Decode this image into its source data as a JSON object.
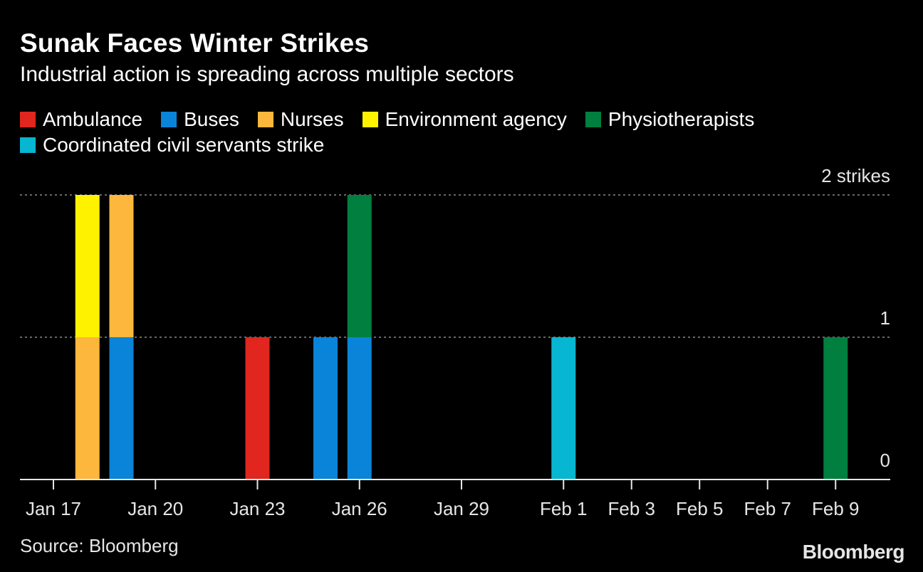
{
  "header": {
    "title": "Sunak Faces Winter Strikes",
    "subtitle": "Industrial action is spreading across multiple sectors"
  },
  "footer": {
    "source": "Source: Bloomberg",
    "brand": "Bloomberg"
  },
  "colors": {
    "background": "#000000",
    "Ambulance": "#e0261e",
    "Buses": "#0a84d8",
    "Nurses": "#fdb73c",
    "Environment agency": "#fff200",
    "Physiotherapists": "#007f3f",
    "Coordinated civil servants strike": "#07b6d1"
  },
  "chart_data": {
    "type": "bar",
    "stacked": true,
    "title": "Sunak Faces Winter Strikes",
    "subtitle": "Industrial action is spreading across multiple sectors",
    "ylabel": "strikes",
    "ylim": [
      0,
      2
    ],
    "y_ticks": [
      {
        "value": 0,
        "label": "0"
      },
      {
        "value": 1,
        "label": "1"
      },
      {
        "value": 2,
        "label": "2 strikes"
      }
    ],
    "grid": true,
    "legend_placement": "top",
    "x_ticks": [
      "Jan 17",
      "Jan 20",
      "Jan 23",
      "Jan 26",
      "Jan 29",
      "Feb 1",
      "Feb 3",
      "Feb 5",
      "Feb 7",
      "Feb 9"
    ],
    "series": [
      {
        "name": "Ambulance",
        "points": [
          {
            "date": "Jan 23",
            "value": 1
          }
        ]
      },
      {
        "name": "Buses",
        "points": [
          {
            "date": "Jan 19",
            "value": 1
          },
          {
            "date": "Jan 25",
            "value": 1
          },
          {
            "date": "Jan 26",
            "value": 1
          }
        ]
      },
      {
        "name": "Nurses",
        "points": [
          {
            "date": "Jan 18",
            "value": 1
          },
          {
            "date": "Jan 19",
            "value": 1
          }
        ]
      },
      {
        "name": "Environment agency",
        "points": [
          {
            "date": "Jan 18",
            "value": 1
          }
        ]
      },
      {
        "name": "Physiotherapists",
        "points": [
          {
            "date": "Jan 26",
            "value": 1
          },
          {
            "date": "Feb 9",
            "value": 1
          }
        ]
      },
      {
        "name": "Coordinated civil servants strike",
        "points": [
          {
            "date": "Feb 1",
            "value": 1
          }
        ]
      }
    ],
    "stacks": [
      {
        "date": "Jan 18",
        "segments": [
          "Nurses",
          "Environment agency"
        ]
      },
      {
        "date": "Jan 19",
        "segments": [
          "Buses",
          "Nurses"
        ]
      },
      {
        "date": "Jan 23",
        "segments": [
          "Ambulance"
        ]
      },
      {
        "date": "Jan 25",
        "segments": [
          "Buses"
        ]
      },
      {
        "date": "Jan 26",
        "segments": [
          "Buses",
          "Physiotherapists"
        ]
      },
      {
        "date": "Feb 1",
        "segments": [
          "Coordinated civil servants strike"
        ]
      },
      {
        "date": "Feb 9",
        "segments": [
          "Physiotherapists"
        ]
      }
    ]
  }
}
